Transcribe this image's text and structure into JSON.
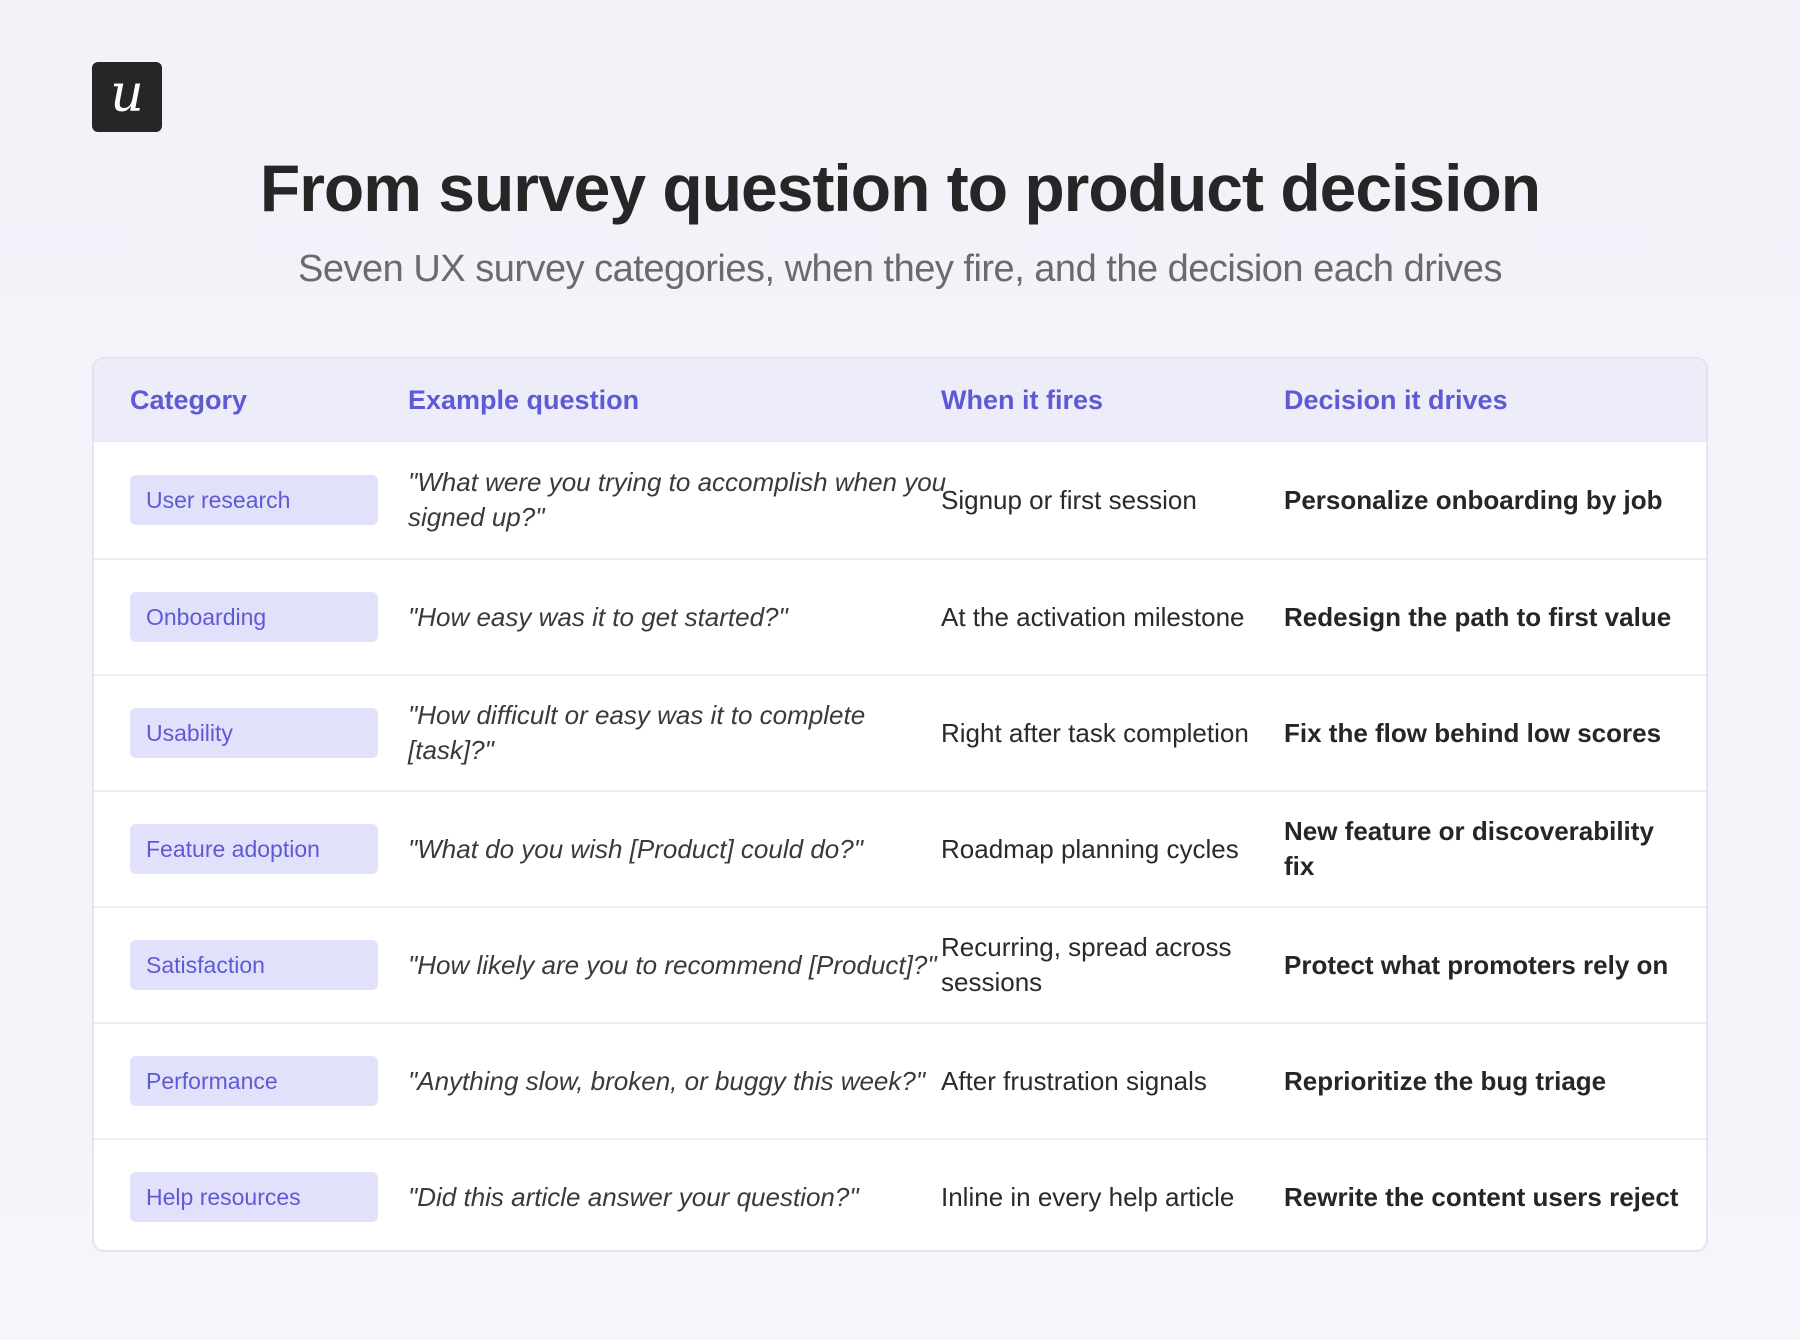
{
  "logo": {
    "glyph": "u"
  },
  "title": "From survey question to product decision",
  "subtitle": "Seven UX survey categories, when they fire, and the decision each drives",
  "table": {
    "headers": [
      "Category",
      "Example question",
      "When it fires",
      "Decision it drives"
    ],
    "rows": [
      {
        "category": "User research",
        "question": "\"What were you trying to accomplish when you signed up?\"",
        "when": "Signup or first session",
        "decision": "Personalize onboarding by job"
      },
      {
        "category": "Onboarding",
        "question": "\"How easy was it to get started?\"",
        "when": "At the activation milestone",
        "decision": "Redesign the path to first value"
      },
      {
        "category": "Usability",
        "question": "\"How difficult or easy was it to complete [task]?\"",
        "when": "Right after task completion",
        "decision": "Fix the flow behind low scores"
      },
      {
        "category": "Feature adoption",
        "question": "\"What do you wish [Product] could do?\"",
        "when": "Roadmap planning cycles",
        "decision": "New feature or discoverability fix"
      },
      {
        "category": "Satisfaction",
        "question": "\"How likely are you to recommend [Product]?\"",
        "when": "Recurring, spread across sessions",
        "decision": "Protect what promoters rely on"
      },
      {
        "category": "Performance",
        "question": "\"Anything slow, broken, or buggy this week?\"",
        "when": "After frustration signals",
        "decision": "Reprioritize the bug triage"
      },
      {
        "category": "Help resources",
        "question": "\"Did this article answer your question?\"",
        "when": "Inline in every help article",
        "decision": "Rewrite the content users reject"
      }
    ]
  },
  "colors": {
    "accent": "#5e5ad6",
    "badge_bg": "#e2e1fb",
    "header_bg": "#ededf9"
  }
}
